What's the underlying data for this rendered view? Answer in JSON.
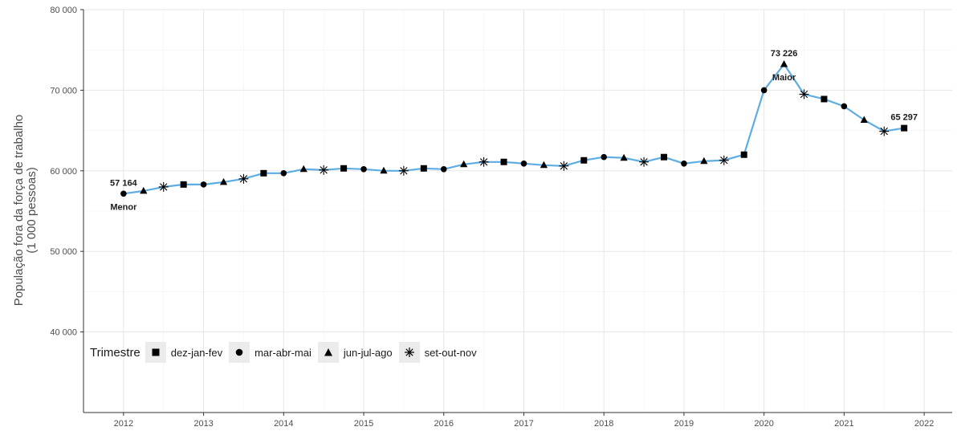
{
  "chart_data": {
    "type": "line",
    "ylabel": [
      "População fora da força de trabalho",
      "(1 000 pessoas)"
    ],
    "xlabel": "",
    "xlim": [
      2011.5,
      2022.35
    ],
    "ylim": [
      30000,
      80000
    ],
    "yticks": [
      40000,
      50000,
      60000,
      70000,
      80000
    ],
    "ytick_labels": [
      "40 000",
      "50 000",
      "60 000",
      "70 000",
      "80 000"
    ],
    "xticks": [
      2012,
      2013,
      2014,
      2015,
      2016,
      2017,
      2018,
      2019,
      2020,
      2021,
      2022
    ],
    "xtick_labels": [
      "2012",
      "2013",
      "2014",
      "2015",
      "2016",
      "2017",
      "2018",
      "2019",
      "2020",
      "2021",
      "2022"
    ],
    "grid": true,
    "line_color": "#5dade2",
    "legend": {
      "title": "Trimestre",
      "position": "bottom-left",
      "entries": [
        {
          "label": "dez-jan-fev",
          "marker": "square"
        },
        {
          "label": "mar-abr-mai",
          "marker": "circle"
        },
        {
          "label": "jun-jul-ago",
          "marker": "triangle"
        },
        {
          "label": "set-out-nov",
          "marker": "asterisk"
        }
      ]
    },
    "series": [
      {
        "points": [
          {
            "x": 2012.0,
            "y": 57164,
            "m": "circle"
          },
          {
            "x": 2012.25,
            "y": 57500,
            "m": "triangle"
          },
          {
            "x": 2012.5,
            "y": 58000,
            "m": "asterisk"
          },
          {
            "x": 2012.75,
            "y": 58300,
            "m": "square"
          },
          {
            "x": 2013.0,
            "y": 58300,
            "m": "circle"
          },
          {
            "x": 2013.25,
            "y": 58600,
            "m": "triangle"
          },
          {
            "x": 2013.5,
            "y": 59000,
            "m": "asterisk"
          },
          {
            "x": 2013.75,
            "y": 59700,
            "m": "square"
          },
          {
            "x": 2014.0,
            "y": 59700,
            "m": "circle"
          },
          {
            "x": 2014.25,
            "y": 60200,
            "m": "triangle"
          },
          {
            "x": 2014.5,
            "y": 60100,
            "m": "asterisk"
          },
          {
            "x": 2014.75,
            "y": 60300,
            "m": "square"
          },
          {
            "x": 2015.0,
            "y": 60200,
            "m": "circle"
          },
          {
            "x": 2015.25,
            "y": 60000,
            "m": "triangle"
          },
          {
            "x": 2015.5,
            "y": 60000,
            "m": "asterisk"
          },
          {
            "x": 2015.75,
            "y": 60300,
            "m": "square"
          },
          {
            "x": 2016.0,
            "y": 60200,
            "m": "circle"
          },
          {
            "x": 2016.25,
            "y": 60800,
            "m": "triangle"
          },
          {
            "x": 2016.5,
            "y": 61100,
            "m": "asterisk"
          },
          {
            "x": 2016.75,
            "y": 61100,
            "m": "square"
          },
          {
            "x": 2017.0,
            "y": 60900,
            "m": "circle"
          },
          {
            "x": 2017.25,
            "y": 60700,
            "m": "triangle"
          },
          {
            "x": 2017.5,
            "y": 60600,
            "m": "asterisk"
          },
          {
            "x": 2017.75,
            "y": 61300,
            "m": "square"
          },
          {
            "x": 2018.0,
            "y": 61700,
            "m": "circle"
          },
          {
            "x": 2018.25,
            "y": 61600,
            "m": "triangle"
          },
          {
            "x": 2018.5,
            "y": 61100,
            "m": "asterisk"
          },
          {
            "x": 2018.75,
            "y": 61700,
            "m": "square"
          },
          {
            "x": 2019.0,
            "y": 60900,
            "m": "circle"
          },
          {
            "x": 2019.25,
            "y": 61200,
            "m": "triangle"
          },
          {
            "x": 2019.5,
            "y": 61300,
            "m": "asterisk"
          },
          {
            "x": 2019.75,
            "y": 62000,
            "m": "square"
          },
          {
            "x": 2020.0,
            "y": 70000,
            "m": "circle"
          },
          {
            "x": 2020.25,
            "y": 73226,
            "m": "triangle"
          },
          {
            "x": 2020.5,
            "y": 69500,
            "m": "asterisk"
          },
          {
            "x": 2020.75,
            "y": 68900,
            "m": "square"
          },
          {
            "x": 2021.0,
            "y": 68000,
            "m": "circle"
          },
          {
            "x": 2021.25,
            "y": 66300,
            "m": "triangle"
          },
          {
            "x": 2021.5,
            "y": 64900,
            "m": "asterisk"
          },
          {
            "x": 2021.75,
            "y": 65297,
            "m": "square"
          }
        ]
      }
    ],
    "annotations": [
      {
        "value_text": "57 164",
        "label": "Menor",
        "x": 2012.0,
        "y": 57164
      },
      {
        "value_text": "73 226",
        "label": "Maior",
        "x": 2020.25,
        "y": 73226
      },
      {
        "value_text": "65 297",
        "label": "",
        "x": 2021.75,
        "y": 65297
      }
    ]
  }
}
